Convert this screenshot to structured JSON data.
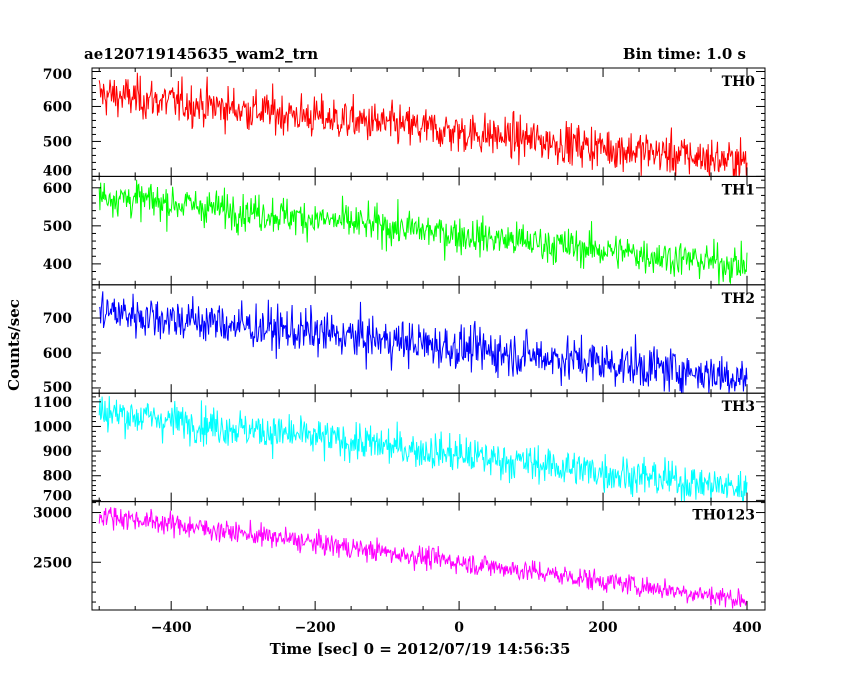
{
  "header": {
    "title": "ae120719145635_wam2_trn",
    "bin_time": "Bin time: 1.0 s"
  },
  "chart_data": {
    "type": "line",
    "xlabel": "Time [sec] 0 = 2012/07/19 14:56:35",
    "ylabel": "Counts/sec",
    "xlim": [
      -510,
      425
    ],
    "x_ticks": [
      -400,
      -200,
      0,
      200,
      400
    ],
    "x_start": -500,
    "x_end": 400,
    "step": 1,
    "panels": [
      {
        "name": "TH0",
        "color": "#ff0000",
        "ylim": [
          400,
          710
        ],
        "yticks": [
          400,
          500,
          600,
          700
        ],
        "trend_start": 635,
        "trend_end": 440,
        "noise": 30
      },
      {
        "name": "TH1",
        "color": "#00ff00",
        "ylim": [
          345,
          630
        ],
        "yticks": [
          400,
          500,
          600
        ],
        "trend_start": 580,
        "trend_end": 395,
        "noise": 24
      },
      {
        "name": "TH2",
        "color": "#0000ff",
        "ylim": [
          485,
          795
        ],
        "yticks": [
          500,
          600,
          700
        ],
        "trend_start": 720,
        "trend_end": 530,
        "noise": 32
      },
      {
        "name": "TH3",
        "color": "#00ffff",
        "ylim": [
          695,
          1135
        ],
        "yticks": [
          700,
          800,
          900,
          1000,
          1100
        ],
        "trend_start": 1060,
        "trend_end": 745,
        "noise": 38
      },
      {
        "name": "TH0123",
        "color": "#ff00ff",
        "ylim": [
          2020,
          3110
        ],
        "yticks": [
          2500,
          3000
        ],
        "trend_start": 2980,
        "trend_end": 2120,
        "noise": 55
      }
    ]
  }
}
